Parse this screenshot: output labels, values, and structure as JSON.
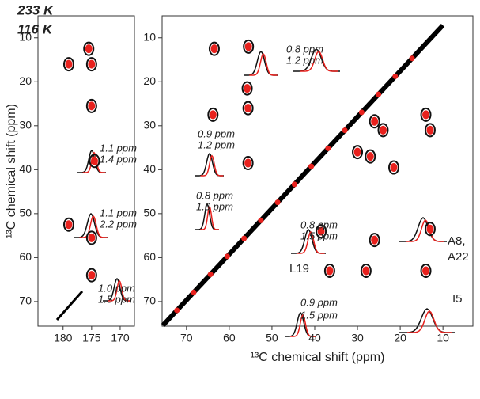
{
  "legend_title": null,
  "chart_data": [
    {
      "type": "scatter",
      "xlim": [
        184.4,
        167.5
      ],
      "ylim": [
        5,
        75.6
      ],
      "xticks": [
        180,
        175,
        170
      ],
      "yticks": [
        10,
        20,
        30,
        40,
        50,
        60,
        70
      ],
      "ylabel": "¹³C chemical shift (ppm)",
      "series": [
        {
          "name": "233 K",
          "color": "#e8211d",
          "x": [
            179,
            175.5,
            175,
            175,
            174.5,
            179,
            175,
            175
          ],
          "values": [
            16,
            12.5,
            16,
            25.5,
            38,
            52.5,
            55.5,
            64
          ]
        },
        {
          "name": "116 K",
          "color": "#111111",
          "x": [
            179,
            175.5,
            175,
            175,
            174.5,
            179,
            175,
            175
          ],
          "values": [
            16,
            12.5,
            16,
            25.5,
            38,
            52.5,
            55.5,
            64
          ]
        }
      ],
      "annotations": [
        {
          "text": "1.1 ppm",
          "color": "#e8211d"
        },
        {
          "text": "1.4 ppm",
          "color": "#111111"
        },
        {
          "text": "1.1 ppm",
          "color": "#e8211d"
        },
        {
          "text": "2.2 ppm",
          "color": "#111111"
        },
        {
          "text": "1.0 ppm",
          "color": "#e8211d"
        },
        {
          "text": "1.5 ppm",
          "color": "#111111"
        }
      ]
    },
    {
      "type": "scatter",
      "xlim": [
        75.7,
        3
      ],
      "ylim": [
        5,
        75.6
      ],
      "xticks": [
        70,
        60,
        50,
        40,
        30,
        20,
        10
      ],
      "yticks": [
        10,
        20,
        30,
        40,
        50,
        60,
        70
      ],
      "xlabel": "¹³C chemical shift (ppm)",
      "series": [
        {
          "name": "233 K",
          "color": "#e8211d",
          "x": [
            63.5,
            55.5,
            55.8,
            55.6,
            63.8,
            55.6,
            26,
            24,
            14,
            13,
            30,
            27,
            21.5,
            38.5,
            26,
            13,
            36.5,
            28,
            14
          ],
          "values": [
            12.5,
            12,
            21.5,
            26,
            27.5,
            38.5,
            29,
            31,
            27.5,
            31,
            36,
            37,
            39.5,
            54,
            56,
            53.5,
            63,
            63,
            63
          ]
        },
        {
          "name": "116 K",
          "color": "#111111",
          "x": [
            63.5,
            55.5,
            55.8,
            55.6,
            63.8,
            55.6,
            26,
            24,
            14,
            13,
            30,
            27,
            21.5,
            38.5,
            26,
            13,
            36.5,
            28,
            14
          ],
          "values": [
            12.5,
            12,
            21.5,
            26,
            27.5,
            38.5,
            29,
            31,
            27.5,
            31,
            36,
            37,
            39.5,
            54,
            56,
            53.5,
            63,
            63,
            63
          ]
        }
      ],
      "annotations": [
        {
          "text": "0.8 ppm",
          "color": "#e8211d"
        },
        {
          "text": "1.2 ppm",
          "color": "#111111"
        },
        {
          "text": "0.9 ppm",
          "color": "#e8211d"
        },
        {
          "text": "1.2 ppm",
          "color": "#111111"
        },
        {
          "text": "0.8 ppm",
          "color": "#e8211d"
        },
        {
          "text": "1.0 ppm",
          "color": "#111111"
        },
        {
          "text": "0.8 ppm",
          "color": "#e8211d"
        },
        {
          "text": "1.5 ppm",
          "color": "#111111"
        },
        {
          "text": "L19",
          "color": "#222222"
        },
        {
          "text": "A8,",
          "color": "#222222"
        },
        {
          "text": "A22",
          "color": "#222222"
        },
        {
          "text": "I5",
          "color": "#222222"
        },
        {
          "text": "0.9 ppm",
          "color": "#e8211d"
        },
        {
          "text": "1.5 ppm",
          "color": "#111111"
        }
      ]
    }
  ]
}
